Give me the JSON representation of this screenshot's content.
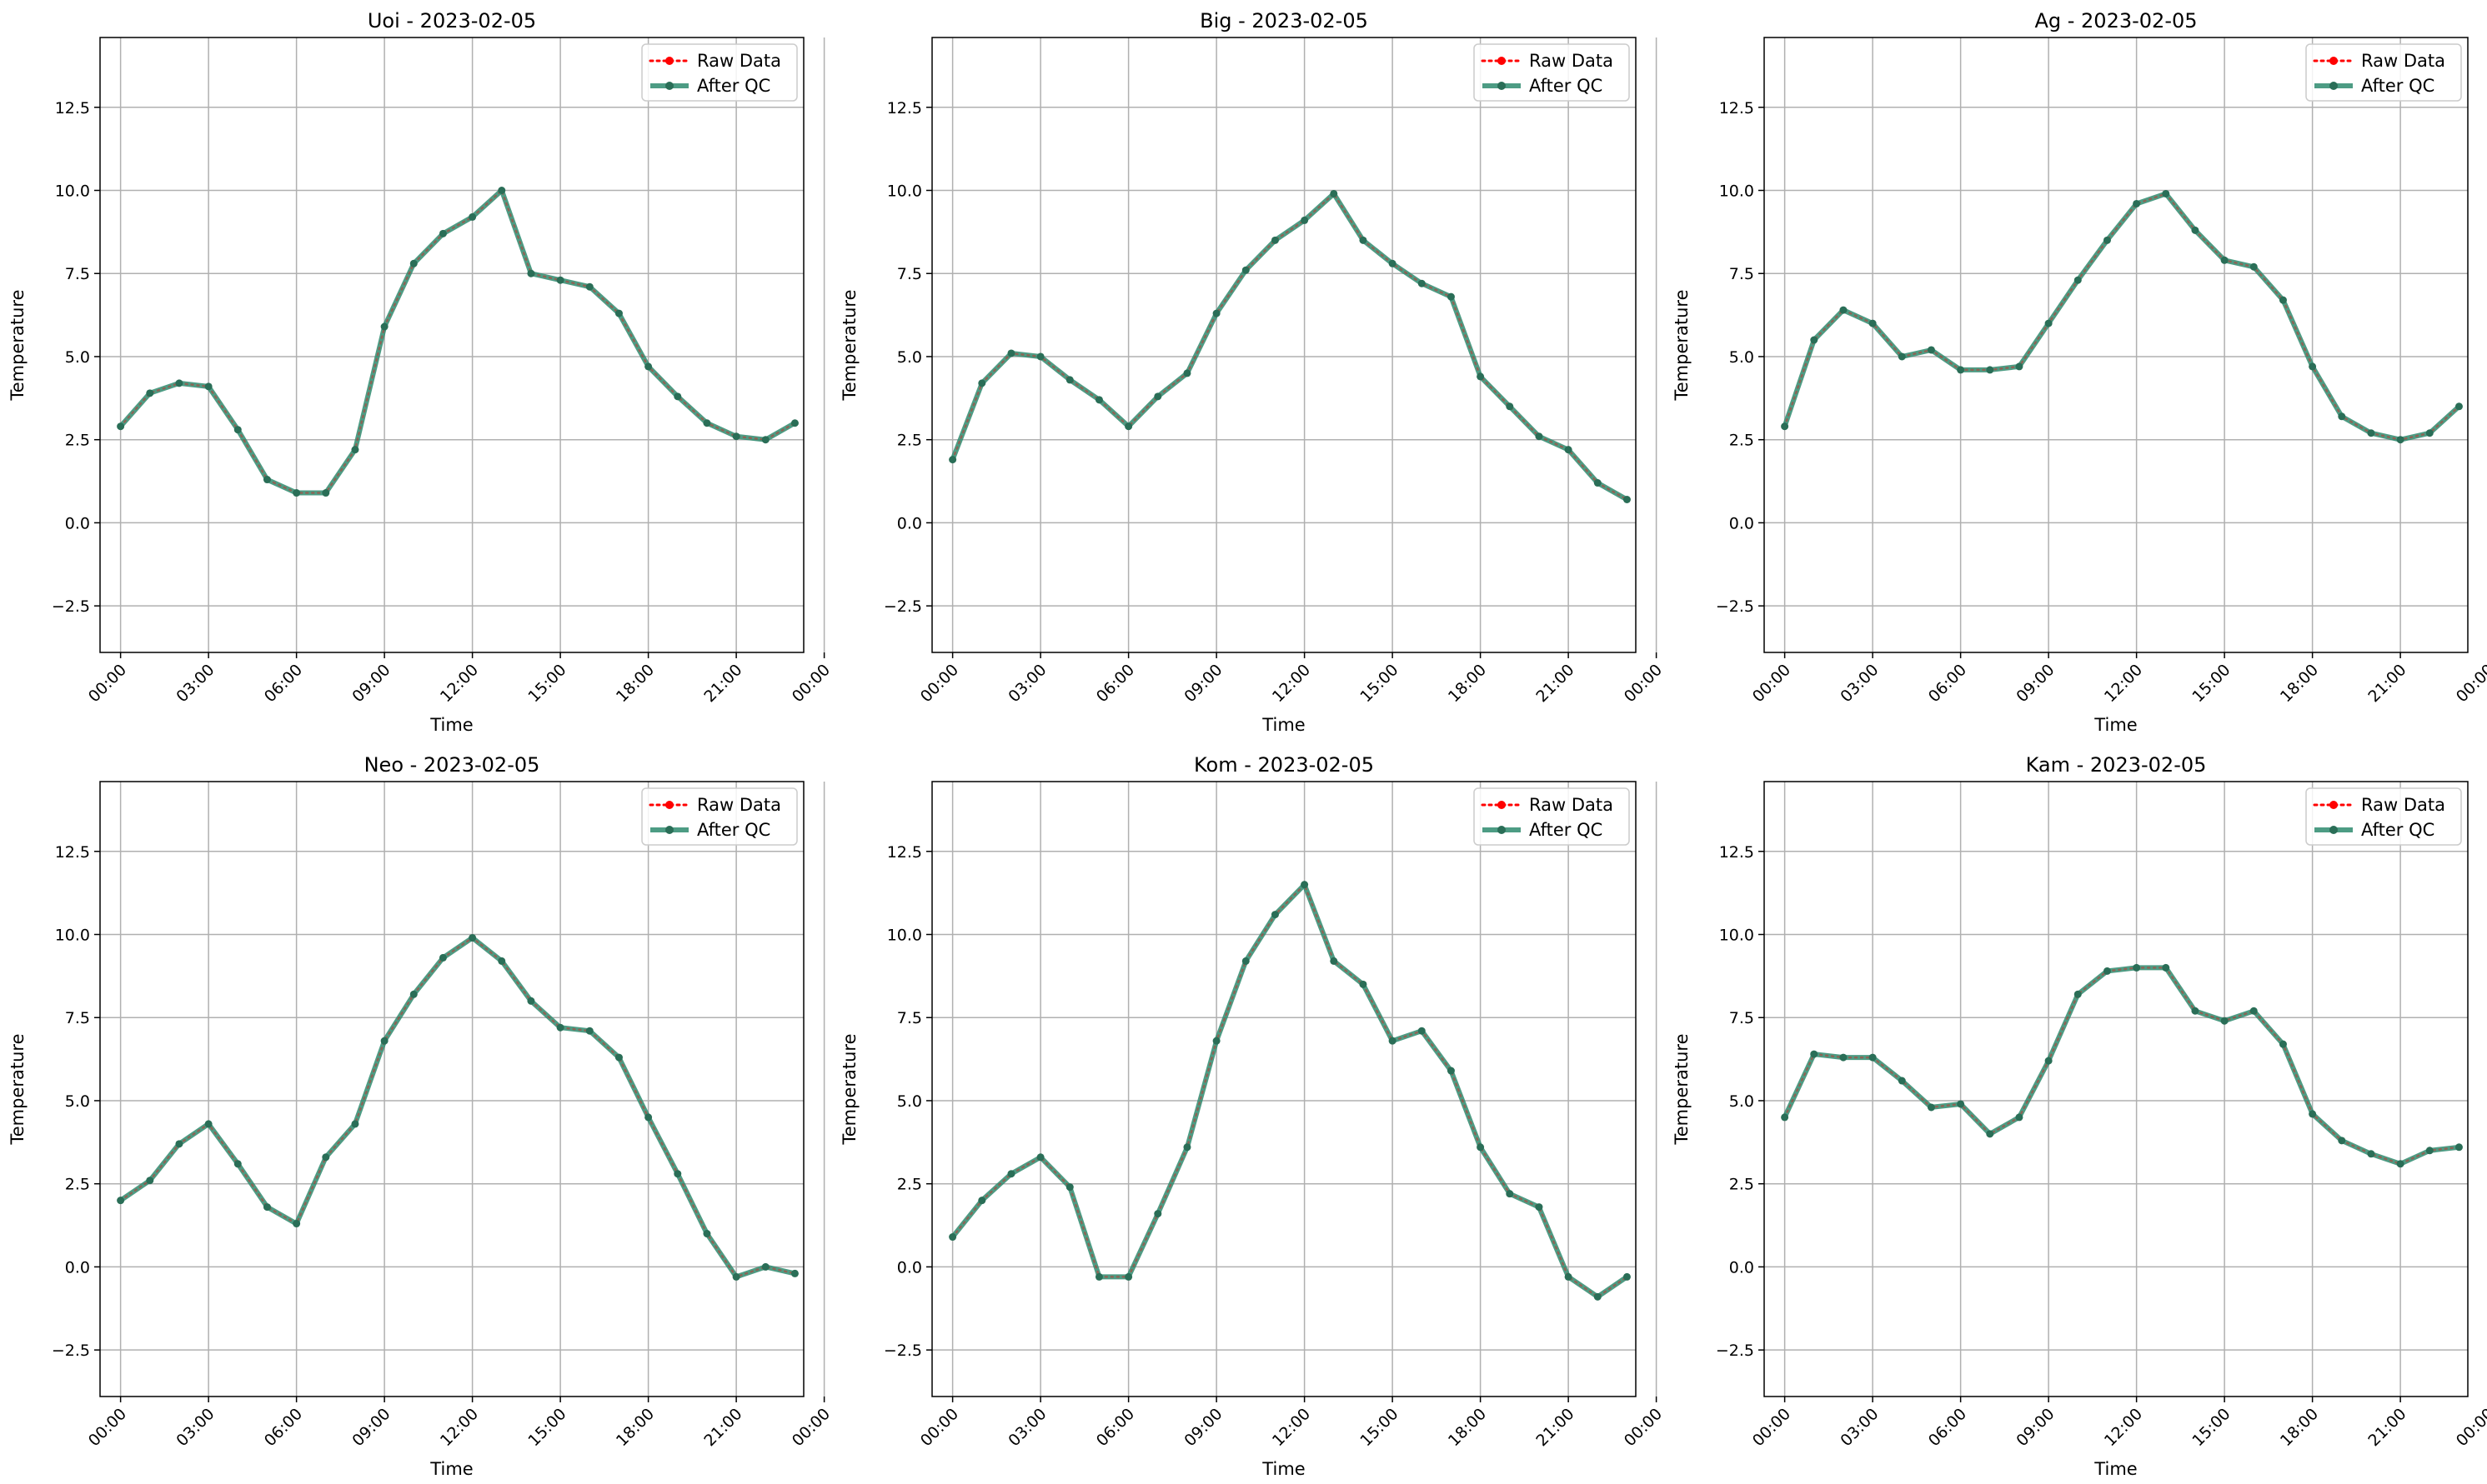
{
  "colors": {
    "raw": "#ff0000",
    "qc": "#2e8b6e",
    "grid": "#b0b0b0",
    "axis": "#000000"
  },
  "chart_data": [
    {
      "type": "line",
      "title": "Uoi - 2023-02-05",
      "xlabel": "Time",
      "ylabel": "Temperature",
      "ylim": [
        -3.9,
        14.6
      ],
      "yticks": [
        -2.5,
        0.0,
        2.5,
        5.0,
        7.5,
        10.0,
        12.5
      ],
      "yticklabels": [
        "−2.5",
        "0.0",
        "2.5",
        "5.0",
        "7.5",
        "10.0",
        "12.5"
      ],
      "xlim": [
        -0.7,
        23.3
      ],
      "xticks": [
        0,
        3,
        6,
        9,
        12,
        15,
        18,
        21,
        24
      ],
      "xticklabels": [
        "00:00",
        "03:00",
        "06:00",
        "09:00",
        "12:00",
        "15:00",
        "18:00",
        "21:00",
        "00:00"
      ],
      "grid": true,
      "legend": "top-right",
      "x": [
        0,
        1,
        2,
        3,
        4,
        5,
        6,
        7,
        8,
        9,
        10,
        11,
        12,
        13,
        14,
        15,
        16,
        17,
        18,
        19,
        20,
        21,
        22,
        23
      ],
      "series": [
        {
          "name": "Raw Data",
          "style": "dotted",
          "values": [
            2.9,
            3.9,
            4.2,
            4.1,
            2.8,
            1.3,
            0.9,
            0.9,
            2.2,
            5.9,
            7.8,
            8.7,
            9.2,
            10.0,
            7.5,
            7.3,
            7.1,
            6.3,
            4.7,
            3.8,
            3.0,
            2.6,
            2.5,
            3.0
          ]
        },
        {
          "name": "After QC",
          "style": "solid",
          "values": [
            2.9,
            3.9,
            4.2,
            4.1,
            2.8,
            1.3,
            0.9,
            0.9,
            2.2,
            5.9,
            7.8,
            8.7,
            9.2,
            10.0,
            7.5,
            7.3,
            7.1,
            6.3,
            4.7,
            3.8,
            3.0,
            2.6,
            2.5,
            3.0
          ]
        }
      ]
    },
    {
      "type": "line",
      "title": "Big - 2023-02-05",
      "xlabel": "Time",
      "ylabel": "Temperature",
      "ylim": [
        -3.9,
        14.6
      ],
      "yticks": [
        -2.5,
        0.0,
        2.5,
        5.0,
        7.5,
        10.0,
        12.5
      ],
      "yticklabels": [
        "−2.5",
        "0.0",
        "2.5",
        "5.0",
        "7.5",
        "10.0",
        "12.5"
      ],
      "xlim": [
        -0.7,
        23.3
      ],
      "xticks": [
        0,
        3,
        6,
        9,
        12,
        15,
        18,
        21,
        24
      ],
      "xticklabels": [
        "00:00",
        "03:00",
        "06:00",
        "09:00",
        "12:00",
        "15:00",
        "18:00",
        "21:00",
        "00:00"
      ],
      "grid": true,
      "legend": "top-right",
      "x": [
        0,
        1,
        2,
        3,
        4,
        5,
        6,
        7,
        8,
        9,
        10,
        11,
        12,
        13,
        14,
        15,
        16,
        17,
        18,
        19,
        20,
        21,
        22,
        23
      ],
      "series": [
        {
          "name": "Raw Data",
          "style": "dotted",
          "values": [
            1.9,
            4.2,
            5.1,
            5.0,
            4.3,
            3.7,
            2.9,
            3.8,
            4.5,
            6.3,
            7.6,
            8.5,
            9.1,
            9.9,
            8.5,
            7.8,
            7.2,
            6.8,
            4.4,
            3.5,
            2.6,
            2.2,
            1.2,
            0.7
          ]
        },
        {
          "name": "After QC",
          "style": "solid",
          "values": [
            1.9,
            4.2,
            5.1,
            5.0,
            4.3,
            3.7,
            2.9,
            3.8,
            4.5,
            6.3,
            7.6,
            8.5,
            9.1,
            9.9,
            8.5,
            7.8,
            7.2,
            6.8,
            4.4,
            3.5,
            2.6,
            2.2,
            1.2,
            0.7
          ]
        }
      ]
    },
    {
      "type": "line",
      "title": "Ag - 2023-02-05",
      "xlabel": "Time",
      "ylabel": "Temperature",
      "ylim": [
        -3.9,
        14.6
      ],
      "yticks": [
        -2.5,
        0.0,
        2.5,
        5.0,
        7.5,
        10.0,
        12.5
      ],
      "yticklabels": [
        "−2.5",
        "0.0",
        "2.5",
        "5.0",
        "7.5",
        "10.0",
        "12.5"
      ],
      "xlim": [
        -0.7,
        23.3
      ],
      "xticks": [
        0,
        3,
        6,
        9,
        12,
        15,
        18,
        21,
        24
      ],
      "xticklabels": [
        "00:00",
        "03:00",
        "06:00",
        "09:00",
        "12:00",
        "15:00",
        "18:00",
        "21:00",
        "00:00"
      ],
      "grid": true,
      "legend": "top-right",
      "x": [
        0,
        1,
        2,
        3,
        4,
        5,
        6,
        7,
        8,
        9,
        10,
        11,
        12,
        13,
        14,
        15,
        16,
        17,
        18,
        19,
        20,
        21,
        22,
        23
      ],
      "series": [
        {
          "name": "Raw Data",
          "style": "dotted",
          "values": [
            2.9,
            5.5,
            6.4,
            6.0,
            5.0,
            5.2,
            4.6,
            4.6,
            4.7,
            6.0,
            7.3,
            8.5,
            9.6,
            9.9,
            8.8,
            7.9,
            7.7,
            6.7,
            4.7,
            3.2,
            2.7,
            2.5,
            2.7,
            3.5
          ]
        },
        {
          "name": "After QC",
          "style": "solid",
          "values": [
            2.9,
            5.5,
            6.4,
            6.0,
            5.0,
            5.2,
            4.6,
            4.6,
            4.7,
            6.0,
            7.3,
            8.5,
            9.6,
            9.9,
            8.8,
            7.9,
            7.7,
            6.7,
            4.7,
            3.2,
            2.7,
            2.5,
            2.7,
            3.5
          ]
        }
      ]
    },
    {
      "type": "line",
      "title": "Neo - 2023-02-05",
      "xlabel": "Time",
      "ylabel": "Temperature",
      "ylim": [
        -3.9,
        14.6
      ],
      "yticks": [
        -2.5,
        0.0,
        2.5,
        5.0,
        7.5,
        10.0,
        12.5
      ],
      "yticklabels": [
        "−2.5",
        "0.0",
        "2.5",
        "5.0",
        "7.5",
        "10.0",
        "12.5"
      ],
      "xlim": [
        -0.7,
        23.3
      ],
      "xticks": [
        0,
        3,
        6,
        9,
        12,
        15,
        18,
        21,
        24
      ],
      "xticklabels": [
        "00:00",
        "03:00",
        "06:00",
        "09:00",
        "12:00",
        "15:00",
        "18:00",
        "21:00",
        "00:00"
      ],
      "grid": true,
      "legend": "top-right",
      "x": [
        0,
        1,
        2,
        3,
        4,
        5,
        6,
        7,
        8,
        9,
        10,
        11,
        12,
        13,
        14,
        15,
        16,
        17,
        18,
        19,
        20,
        21,
        22,
        23
      ],
      "series": [
        {
          "name": "Raw Data",
          "style": "dotted",
          "values": [
            2.0,
            2.6,
            3.7,
            4.3,
            3.1,
            1.8,
            1.3,
            3.3,
            4.3,
            6.8,
            8.2,
            9.3,
            9.9,
            9.2,
            8.0,
            7.2,
            7.1,
            6.3,
            4.5,
            2.8,
            1.0,
            -0.3,
            0.0,
            -0.2
          ]
        },
        {
          "name": "After QC",
          "style": "solid",
          "values": [
            2.0,
            2.6,
            3.7,
            4.3,
            3.1,
            1.8,
            1.3,
            3.3,
            4.3,
            6.8,
            8.2,
            9.3,
            9.9,
            9.2,
            8.0,
            7.2,
            7.1,
            6.3,
            4.5,
            2.8,
            1.0,
            -0.3,
            0.0,
            -0.2
          ]
        }
      ]
    },
    {
      "type": "line",
      "title": "Kom - 2023-02-05",
      "xlabel": "Time",
      "ylabel": "Temperature",
      "ylim": [
        -3.9,
        14.6
      ],
      "yticks": [
        -2.5,
        0.0,
        2.5,
        5.0,
        7.5,
        10.0,
        12.5
      ],
      "yticklabels": [
        "−2.5",
        "0.0",
        "2.5",
        "5.0",
        "7.5",
        "10.0",
        "12.5"
      ],
      "xlim": [
        -0.7,
        23.3
      ],
      "xticks": [
        0,
        3,
        6,
        9,
        12,
        15,
        18,
        21,
        24
      ],
      "xticklabels": [
        "00:00",
        "03:00",
        "06:00",
        "09:00",
        "12:00",
        "15:00",
        "18:00",
        "21:00",
        "00:00"
      ],
      "grid": true,
      "legend": "top-right",
      "x": [
        0,
        1,
        2,
        3,
        4,
        5,
        6,
        7,
        8,
        9,
        10,
        11,
        12,
        13,
        14,
        15,
        16,
        17,
        18,
        19,
        20,
        21,
        22,
        23
      ],
      "series": [
        {
          "name": "Raw Data",
          "style": "dotted",
          "values": [
            0.9,
            2.0,
            2.8,
            3.3,
            2.4,
            -0.3,
            -0.3,
            1.6,
            3.6,
            6.8,
            9.2,
            10.6,
            11.5,
            9.2,
            8.5,
            6.8,
            7.1,
            5.9,
            3.6,
            2.2,
            1.8,
            -0.3,
            -0.9,
            -0.3
          ]
        },
        {
          "name": "After QC",
          "style": "solid",
          "values": [
            0.9,
            2.0,
            2.8,
            3.3,
            2.4,
            -0.3,
            -0.3,
            1.6,
            3.6,
            6.8,
            9.2,
            10.6,
            11.5,
            9.2,
            8.5,
            6.8,
            7.1,
            5.9,
            3.6,
            2.2,
            1.8,
            -0.3,
            -0.9,
            -0.3
          ]
        }
      ]
    },
    {
      "type": "line",
      "title": "Kam - 2023-02-05",
      "xlabel": "Time",
      "ylabel": "Temperature",
      "ylim": [
        -3.9,
        14.6
      ],
      "yticks": [
        -2.5,
        0.0,
        2.5,
        5.0,
        7.5,
        10.0,
        12.5
      ],
      "yticklabels": [
        "−2.5",
        "0.0",
        "2.5",
        "5.0",
        "7.5",
        "10.0",
        "12.5"
      ],
      "xlim": [
        -0.7,
        23.3
      ],
      "xticks": [
        0,
        3,
        6,
        9,
        12,
        15,
        18,
        21,
        24
      ],
      "xticklabels": [
        "00:00",
        "03:00",
        "06:00",
        "09:00",
        "12:00",
        "15:00",
        "18:00",
        "21:00",
        "00:00"
      ],
      "grid": true,
      "legend": "top-right",
      "x": [
        0,
        1,
        2,
        3,
        4,
        5,
        6,
        7,
        8,
        9,
        10,
        11,
        12,
        13,
        14,
        15,
        16,
        17,
        18,
        19,
        20,
        21,
        22,
        23
      ],
      "series": [
        {
          "name": "Raw Data",
          "style": "dotted",
          "values": [
            4.5,
            6.4,
            6.3,
            6.3,
            5.6,
            4.8,
            4.9,
            4.0,
            4.5,
            6.2,
            8.2,
            8.9,
            9.0,
            9.0,
            7.7,
            7.4,
            7.7,
            6.7,
            4.6,
            3.8,
            3.4,
            3.1,
            3.5,
            3.6
          ]
        },
        {
          "name": "After QC",
          "style": "solid",
          "values": [
            4.5,
            6.4,
            6.3,
            6.3,
            5.6,
            4.8,
            4.9,
            4.0,
            4.5,
            6.2,
            8.2,
            8.9,
            9.0,
            9.0,
            7.7,
            7.4,
            7.7,
            6.7,
            4.6,
            3.8,
            3.4,
            3.1,
            3.5,
            3.6
          ]
        }
      ]
    }
  ]
}
